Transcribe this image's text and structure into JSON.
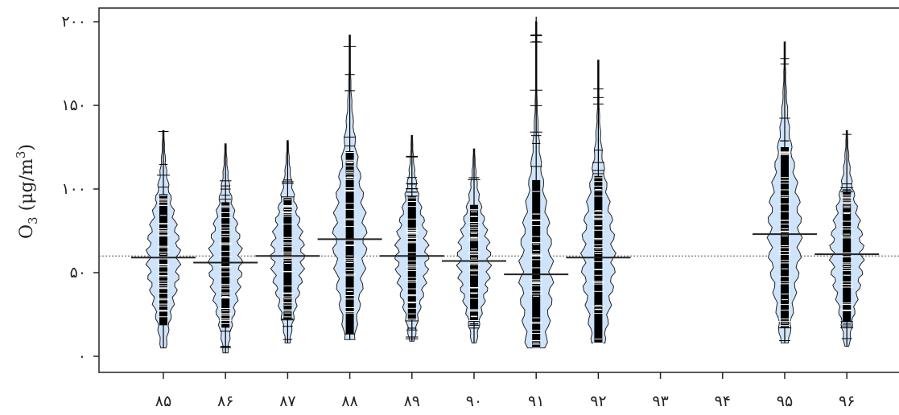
{
  "chart_data": {
    "type": "beanplot",
    "title": "",
    "xlabel": "",
    "ylabel": {
      "prefix": "O",
      "subscript": "3",
      "unit_open": " (μg/m",
      "unit_sup": "3",
      "unit_close": ")"
    },
    "ylim": [
      -8,
      202
    ],
    "yticks": [
      0,
      50,
      100,
      150,
      200
    ],
    "ytick_labels": [
      "۰",
      "۵۰",
      "۱۰۰",
      "۱۵۰",
      "۲۰۰"
    ],
    "categories": [
      "۸۵",
      "۸۶",
      "۸۷",
      "۸۸",
      "۸۹",
      "۹۰",
      "۹۱",
      "۹۲",
      "۹۳",
      "۹۴",
      "۹۵",
      "۹۶"
    ],
    "overall_mean": 60,
    "grid": false,
    "legend": "none",
    "series": [
      {
        "category": "۸۵",
        "min": 5,
        "max": 135,
        "mean": 59,
        "has_data": true
      },
      {
        "category": "۸۶",
        "min": 2,
        "max": 127,
        "mean": 56,
        "has_data": true
      },
      {
        "category": "۸۷",
        "min": 8,
        "max": 129,
        "mean": 60,
        "has_data": true
      },
      {
        "category": "۸۸",
        "min": 10,
        "max": 192,
        "mean": 70,
        "has_data": true
      },
      {
        "category": "۸۹",
        "min": 9,
        "max": 132,
        "mean": 60,
        "has_data": true
      },
      {
        "category": "۹۰",
        "min": 8,
        "max": 124,
        "mean": 57,
        "has_data": true
      },
      {
        "category": "۹۱",
        "min": 5,
        "max": 203,
        "mean": 49,
        "has_data": true
      },
      {
        "category": "۹۲",
        "min": 8,
        "max": 177,
        "mean": 59,
        "has_data": true
      },
      {
        "category": "۹۳",
        "has_data": false
      },
      {
        "category": "۹۴",
        "has_data": false
      },
      {
        "category": "۹۵",
        "min": 8,
        "max": 188,
        "mean": 73,
        "has_data": true
      },
      {
        "category": "۹۶",
        "min": 6,
        "max": 135,
        "mean": 61,
        "has_data": true
      }
    ],
    "colors": {
      "bean_fill": "#cfe4fb",
      "bean_stroke": "#222222",
      "beanline": "#000000",
      "mean_line": "#222222",
      "overall_line": "#555555",
      "axis": "#222222"
    }
  }
}
